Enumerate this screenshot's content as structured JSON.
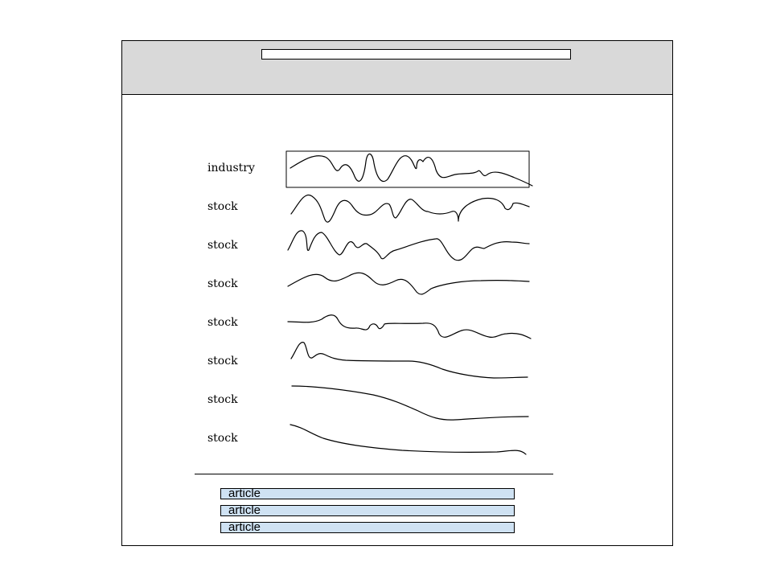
{
  "header": {
    "search_value": ""
  },
  "rows": [
    {
      "label": "industry",
      "highlighted": true
    },
    {
      "label": "stock"
    },
    {
      "label": "stock"
    },
    {
      "label": "stock"
    },
    {
      "label": "stock"
    },
    {
      "label": "stock"
    },
    {
      "label": "stock"
    },
    {
      "label": "stock"
    }
  ],
  "articles": [
    {
      "label": "article"
    },
    {
      "label": "article"
    },
    {
      "label": "article"
    }
  ],
  "colors": {
    "header_bg": "#d9d9d9",
    "article_bg": "#cfe2f3",
    "line": "#000000"
  }
}
